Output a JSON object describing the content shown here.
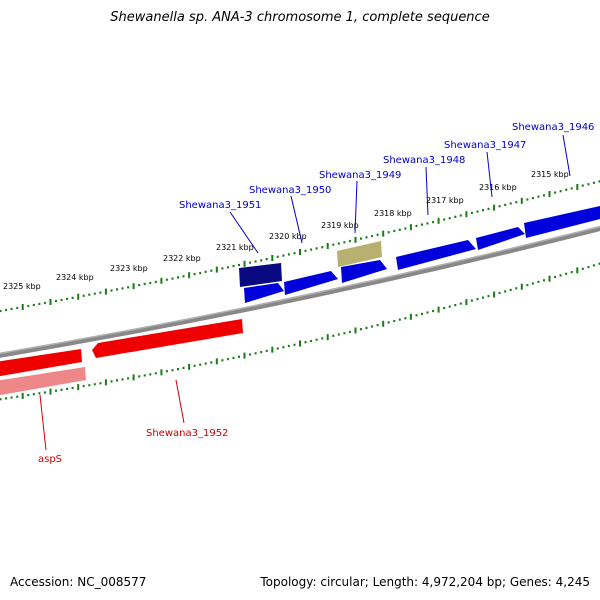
{
  "title": "Shewanella sp. ANA-3 chromosome 1, complete sequence",
  "footer": {
    "accession": "Accession: NC_008577",
    "summary": "Topology: circular; Length: 4,972,204 bp; Genes: 4,245"
  },
  "colors": {
    "forward_gene": "#0000dd",
    "reverse_gene": "#ee0000",
    "reverse_gene_faded": "#ee8888",
    "highlight_gene": "#0a0a80",
    "olive_gene": "#b8b070",
    "backbone": "#888888",
    "tick": "#1a7a1a",
    "forward_label": "#0000cc",
    "reverse_label": "#cc0000"
  },
  "scale": {
    "unit": "kbp",
    "ticks": [
      {
        "label": "2315 kbp",
        "kbp": 2315
      },
      {
        "label": "2316 kbp",
        "kbp": 2316
      },
      {
        "label": "2317 kbp",
        "kbp": 2317
      },
      {
        "label": "2318 kbp",
        "kbp": 2318
      },
      {
        "label": "2319 kbp",
        "kbp": 2319
      },
      {
        "label": "2320 kbp",
        "kbp": 2320
      },
      {
        "label": "2321 kbp",
        "kbp": 2321
      },
      {
        "label": "2322 kbp",
        "kbp": 2322
      },
      {
        "label": "2323 kbp",
        "kbp": 2323
      },
      {
        "label": "2324 kbp",
        "kbp": 2324
      },
      {
        "label": "2325 kbp",
        "kbp": 2325
      }
    ]
  },
  "genes_forward": [
    {
      "name": "Shewana3_1946"
    },
    {
      "name": "Shewana3_1947"
    },
    {
      "name": "Shewana3_1948"
    },
    {
      "name": "Shewana3_1949"
    },
    {
      "name": "Shewana3_1950"
    },
    {
      "name": "Shewana3_1951"
    }
  ],
  "genes_reverse": [
    {
      "name": "Shewana3_1952"
    },
    {
      "name": "aspS"
    }
  ]
}
